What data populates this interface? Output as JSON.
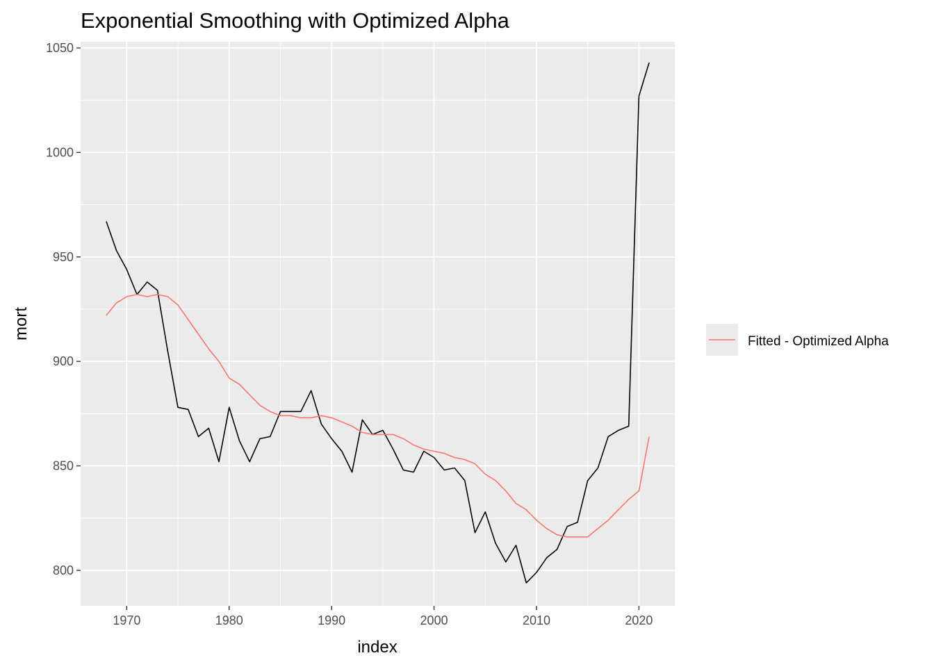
{
  "chart_data": {
    "type": "line",
    "title": "Exponential Smoothing with Optimized Alpha",
    "xlabel": "index",
    "ylabel": "mort",
    "xlim": [
      1965.5,
      2023.5
    ],
    "ylim": [
      783,
      1053
    ],
    "x_ticks": [
      1970,
      1980,
      1990,
      2000,
      2010,
      2020
    ],
    "y_ticks": [
      800,
      850,
      900,
      950,
      1000,
      1050
    ],
    "grid": true,
    "legend": {
      "placement": "right",
      "entries": [
        "Fitted - Optimized Alpha"
      ]
    },
    "x": [
      1968,
      1969,
      1970,
      1971,
      1972,
      1973,
      1974,
      1975,
      1976,
      1977,
      1978,
      1979,
      1980,
      1981,
      1982,
      1983,
      1984,
      1985,
      1986,
      1987,
      1988,
      1989,
      1990,
      1991,
      1992,
      1993,
      1994,
      1995,
      1996,
      1997,
      1998,
      1999,
      2000,
      2001,
      2002,
      2003,
      2004,
      2005,
      2006,
      2007,
      2008,
      2009,
      2010,
      2011,
      2012,
      2013,
      2014,
      2015,
      2016,
      2017,
      2018,
      2019,
      2020,
      2021
    ],
    "series": [
      {
        "color": "#000000",
        "values": [
          967,
          953,
          944,
          932,
          938,
          934,
          905,
          878,
          877,
          864,
          868,
          852,
          878,
          862,
          852,
          863,
          864,
          876,
          876,
          876,
          886,
          870,
          863,
          857,
          847,
          872,
          865,
          867,
          858,
          848,
          847,
          857,
          854,
          848,
          849,
          843,
          818,
          828,
          813,
          804,
          812,
          794,
          799,
          806,
          810,
          821,
          823,
          843,
          849,
          864,
          867,
          869,
          1027,
          1043
        ]
      },
      {
        "name": "Fitted - Optimized Alpha",
        "color": "#f8766d",
        "values": [
          922,
          928,
          931,
          932,
          931,
          932,
          931,
          927,
          920,
          913,
          906,
          900,
          892,
          889,
          884,
          879,
          876,
          874,
          874,
          873,
          873,
          874,
          873,
          871,
          869,
          866,
          865,
          865,
          865,
          863,
          860,
          858,
          857,
          856,
          854,
          853,
          851,
          846,
          843,
          838,
          832,
          829,
          824,
          820,
          817,
          816,
          816,
          816,
          820,
          824,
          829,
          834,
          838,
          864
        ]
      }
    ]
  }
}
